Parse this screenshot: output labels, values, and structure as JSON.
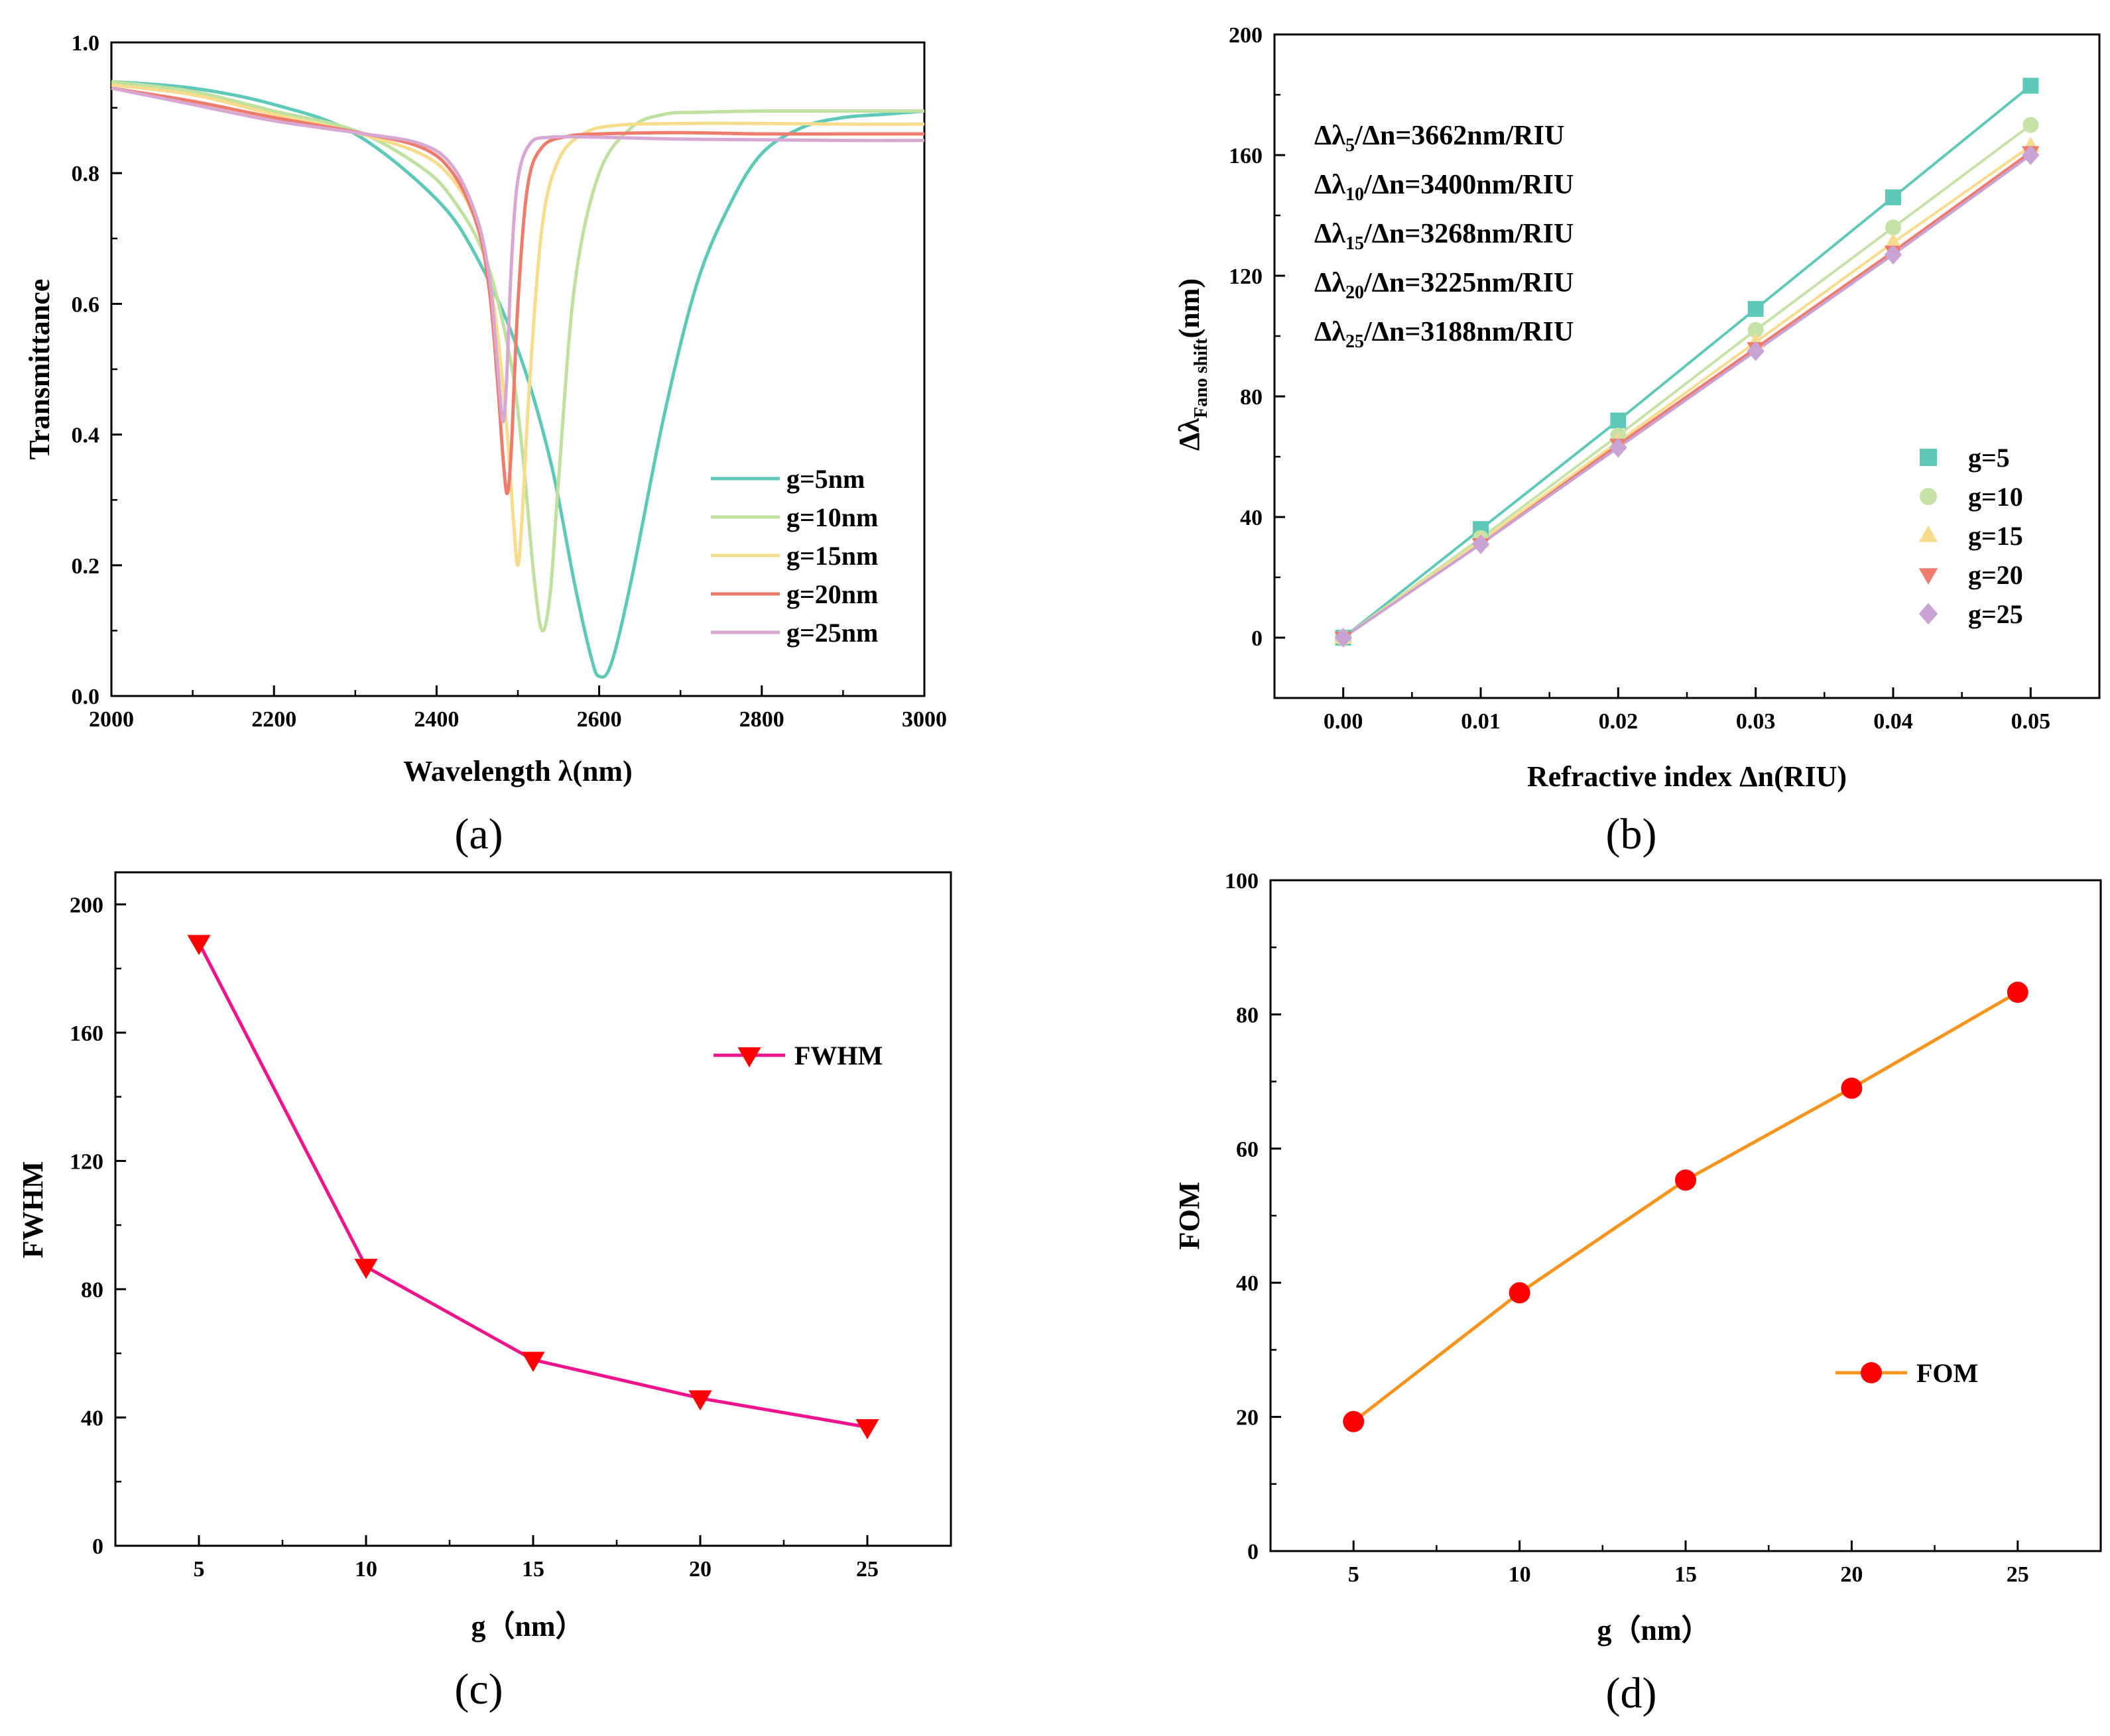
{
  "chart_data": [
    {
      "id": "a",
      "type": "line",
      "panel_label": "(a)",
      "xlabel": "Wavelength λ(nm)",
      "ylabel": "Transmittance",
      "xlim": [
        2000,
        3000
      ],
      "ylim": [
        0.0,
        1.0
      ],
      "xticks": [
        2000,
        2200,
        2400,
        2600,
        2800,
        3000
      ],
      "yticks": [
        0.0,
        0.2,
        0.4,
        0.6,
        0.8,
        1.0
      ],
      "xtick_labels": [
        "2000",
        "2200",
        "2400",
        "2600",
        "2800",
        "3000"
      ],
      "ytick_labels": [
        "0.0",
        "0.2",
        "0.4",
        "0.6",
        "0.8",
        "1.0"
      ],
      "legend_position": "center-right",
      "series": [
        {
          "name": "g=5nm",
          "color": "#5ec9b9",
          "x": [
            2000,
            2100,
            2200,
            2300,
            2400,
            2450,
            2500,
            2540,
            2570,
            2590,
            2600,
            2615,
            2640,
            2680,
            2720,
            2760,
            2800,
            2850,
            2900,
            2950,
            3000
          ],
          "y": [
            0.94,
            0.93,
            0.905,
            0.86,
            0.76,
            0.67,
            0.53,
            0.36,
            0.17,
            0.06,
            0.03,
            0.05,
            0.18,
            0.43,
            0.63,
            0.75,
            0.83,
            0.87,
            0.885,
            0.89,
            0.895
          ]
        },
        {
          "name": "g=10nm",
          "color": "#bfe09e",
          "x": [
            2000,
            2100,
            2200,
            2300,
            2380,
            2420,
            2460,
            2490,
            2505,
            2520,
            2530,
            2540,
            2550,
            2570,
            2600,
            2640,
            2680,
            2720,
            2800,
            2900,
            3000
          ],
          "y": [
            0.94,
            0.925,
            0.895,
            0.865,
            0.81,
            0.76,
            0.67,
            0.52,
            0.38,
            0.18,
            0.1,
            0.16,
            0.33,
            0.63,
            0.8,
            0.87,
            0.89,
            0.893,
            0.895,
            0.895,
            0.895
          ]
        },
        {
          "name": "g=15nm",
          "color": "#f7dc8e",
          "x": [
            2000,
            2100,
            2200,
            2300,
            2380,
            2420,
            2450,
            2470,
            2485,
            2495,
            2500,
            2505,
            2515,
            2530,
            2550,
            2580,
            2620,
            2700,
            2800,
            2900,
            3000
          ],
          "y": [
            0.935,
            0.92,
            0.89,
            0.862,
            0.83,
            0.79,
            0.72,
            0.6,
            0.43,
            0.26,
            0.2,
            0.27,
            0.49,
            0.72,
            0.82,
            0.86,
            0.873,
            0.876,
            0.876,
            0.875,
            0.875
          ]
        },
        {
          "name": "g=20nm",
          "color": "#ee7c6c",
          "x": [
            2000,
            2100,
            2200,
            2300,
            2380,
            2420,
            2450,
            2465,
            2475,
            2482,
            2487,
            2492,
            2500,
            2512,
            2530,
            2560,
            2600,
            2700,
            2800,
            2900,
            3000
          ],
          "y": [
            0.93,
            0.91,
            0.885,
            0.863,
            0.84,
            0.8,
            0.72,
            0.62,
            0.48,
            0.36,
            0.31,
            0.38,
            0.6,
            0.78,
            0.84,
            0.856,
            0.86,
            0.862,
            0.86,
            0.86,
            0.86
          ]
        },
        {
          "name": "g=25nm",
          "color": "#d8a7d2",
          "x": [
            2000,
            2100,
            2200,
            2300,
            2380,
            2420,
            2450,
            2465,
            2472,
            2478,
            2482,
            2486,
            2492,
            2500,
            2515,
            2540,
            2600,
            2700,
            2800,
            2900,
            3000
          ],
          "y": [
            0.93,
            0.905,
            0.88,
            0.862,
            0.845,
            0.81,
            0.73,
            0.64,
            0.55,
            0.46,
            0.42,
            0.48,
            0.66,
            0.79,
            0.845,
            0.855,
            0.855,
            0.852,
            0.851,
            0.85,
            0.85
          ]
        }
      ]
    },
    {
      "id": "b",
      "type": "scatter",
      "panel_label": "(b)",
      "xlabel": "Refractive index Δn(RIU)",
      "ylabel": "Δλ",
      "ylabel_sub": "Fano shift",
      "ylabel_unit": "(nm)",
      "xlim": [
        -0.005,
        0.055
      ],
      "ylim": [
        -20,
        200
      ],
      "xticks": [
        0.0,
        0.01,
        0.02,
        0.03,
        0.04,
        0.05
      ],
      "yticks": [
        0,
        40,
        80,
        120,
        160,
        200
      ],
      "xtick_labels": [
        "0.00",
        "0.01",
        "0.02",
        "0.03",
        "0.04",
        "0.05"
      ],
      "ytick_labels": [
        "0",
        "40",
        "80",
        "120",
        "160",
        "200"
      ],
      "legend_position": "bottom-right",
      "annotations": [
        {
          "pre": "Δλ",
          "sub": "5",
          "post": "/Δn=3662nm/RIU"
        },
        {
          "pre": "Δλ",
          "sub": "10",
          "post": "/Δn=3400nm/RIU"
        },
        {
          "pre": "Δλ",
          "sub": "15",
          "post": "/Δn=3268nm/RIU"
        },
        {
          "pre": "Δλ",
          "sub": "20",
          "post": "/Δn=3225nm/RIU"
        },
        {
          "pre": "Δλ",
          "sub": "25",
          "post": "/Δn=3188nm/RIU"
        }
      ],
      "x": [
        0.0,
        0.01,
        0.02,
        0.03,
        0.04,
        0.05
      ],
      "series": [
        {
          "name": "g=5",
          "color": "#5ec9b9",
          "marker": "square",
          "values": [
            0,
            36,
            72,
            109,
            146,
            183
          ]
        },
        {
          "name": "g=10",
          "color": "#c6e2a6",
          "marker": "circle",
          "values": [
            0,
            33,
            67,
            102,
            136,
            170
          ]
        },
        {
          "name": "g=15",
          "color": "#f7dc8e",
          "marker": "triangle-up",
          "values": [
            0,
            32,
            65,
            98,
            131,
            163
          ]
        },
        {
          "name": "g=20",
          "color": "#ee7c6c",
          "marker": "triangle-down",
          "values": [
            0,
            31,
            64,
            96,
            128,
            161
          ]
        },
        {
          "name": "g=25",
          "color": "#c9a3d4",
          "marker": "diamond",
          "values": [
            0,
            31,
            63,
            95,
            127,
            160
          ]
        }
      ]
    },
    {
      "id": "c",
      "type": "line",
      "panel_label": "(c)",
      "xlabel": "g（nm）",
      "ylabel": "FWHM",
      "xlim": [
        2.5,
        27.5
      ],
      "ylim": [
        0,
        210
      ],
      "xticks": [
        5,
        10,
        15,
        20,
        25
      ],
      "yticks": [
        0,
        40,
        80,
        120,
        160,
        200
      ],
      "xtick_labels": [
        "5",
        "10",
        "15",
        "20",
        "25"
      ],
      "ytick_labels": [
        "0",
        "40",
        "80",
        "120",
        "160",
        "200"
      ],
      "legend_position": "top-right",
      "series": [
        {
          "name": "FWHM",
          "color": "#f0148c",
          "marker_color": "#ff0000",
          "marker": "triangle-down",
          "x": [
            5,
            10,
            15,
            20,
            25
          ],
          "values": [
            188,
            87,
            58,
            46,
            37
          ]
        }
      ]
    },
    {
      "id": "d",
      "type": "line",
      "panel_label": "(d)",
      "xlabel": "g（nm）",
      "ylabel": "FOM",
      "xlim": [
        2.5,
        27.5
      ],
      "ylim": [
        0,
        100
      ],
      "xticks": [
        5,
        10,
        15,
        20,
        25
      ],
      "yticks": [
        0,
        20,
        40,
        60,
        80,
        100
      ],
      "xtick_labels": [
        "5",
        "10",
        "15",
        "20",
        "25"
      ],
      "ytick_labels": [
        "0",
        "20",
        "40",
        "60",
        "80",
        "100"
      ],
      "legend_position": "bottom-right",
      "series": [
        {
          "name": "FOM",
          "color": "#f7941d",
          "marker_color": "#ff0000",
          "marker": "circle",
          "x": [
            5,
            10,
            15,
            20,
            25
          ],
          "values": [
            19.3,
            38.5,
            55.3,
            69,
            83.3
          ]
        }
      ]
    }
  ]
}
